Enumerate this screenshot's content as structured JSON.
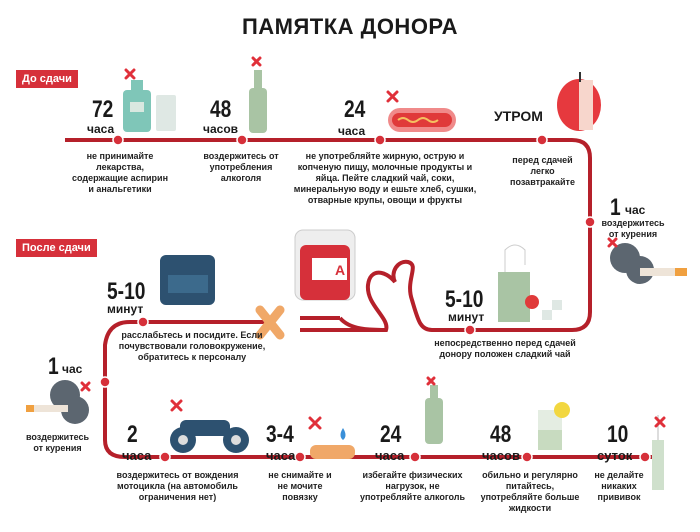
{
  "title": "ПАМЯТКА ДОНОРА",
  "sections": {
    "before": "До сдачи",
    "after": "После сдачи"
  },
  "colors": {
    "line": "#b5202a",
    "accent": "#d6303a",
    "icon_dark": "#2d5170",
    "icon_green": "#a9c4a4"
  },
  "before": [
    {
      "num": "72",
      "unit": "часа",
      "desc": "не принимайте лекарства, содержащие аспирин и анальгетики",
      "icon": "medicine-bottle-pills-icon"
    },
    {
      "num": "48",
      "unit": "часов",
      "desc": "воздержитесь от употребления алкоголя",
      "icon": "bottle-icon"
    },
    {
      "num": "24",
      "unit": "часа",
      "desc": "не употребляйте жирную, острую и копченую пищу, молочные продукты и яйца. Пейте сладкий чай, соки, минеральную воду и ешьте хлеб, сушки, отварные крупы, овощи и фрукты",
      "icon": "hotdog-icon"
    },
    {
      "num": "УТРОМ",
      "unit": "",
      "desc": "перед сдачей легко позавтракайте",
      "icon": "apple-icon"
    },
    {
      "num": "1",
      "unit": "час",
      "desc": "воздержитесь от курения",
      "icon": "cigarette-icon"
    },
    {
      "num": "5-10",
      "unit": "минут",
      "desc": "непосредственно перед сдачей донору положен сладкий чай",
      "icon": "tea-icon"
    }
  ],
  "blood_bag_label": "A",
  "after": [
    {
      "num": "5-10",
      "unit": "минут",
      "desc": "расслабьтесь и посидите. Если почувствовали головокружение, обратитесь к персоналу",
      "icon": "armchair-icon"
    },
    {
      "num": "1",
      "unit": "час",
      "desc": "воздержитесь от курения",
      "icon": "cigarette-icon"
    },
    {
      "num": "2",
      "unit": "часа",
      "desc": "воздержитесь от вождения мотоцикла (на автомобиль ограничения нет)",
      "icon": "motorcycle-icon"
    },
    {
      "num": "3-4",
      "unit": "часа",
      "desc": "не снимайте и не мочите повязку",
      "icon": "bandage-icon"
    },
    {
      "num": "24",
      "unit": "часа",
      "desc": "избегайте физических нагрузок, не употребляйте алкоголь",
      "icon": "bottle-icon"
    },
    {
      "num": "48",
      "unit": "часов",
      "desc": "обильно и регулярно питайтесь, употребляйте больше жидкости",
      "icon": "glass-lemon-icon"
    },
    {
      "num": "10",
      "unit": "суток",
      "desc": "не делайте никаких прививок",
      "icon": "syringe-icon"
    }
  ]
}
